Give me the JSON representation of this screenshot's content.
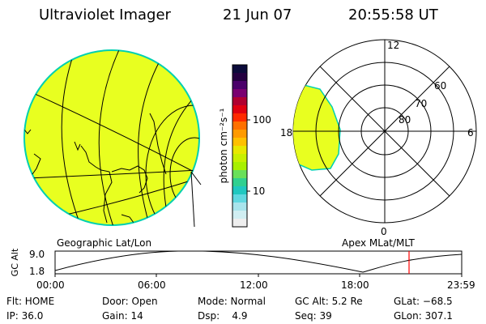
{
  "header": {
    "instrument": "Ultraviolet Imager",
    "date": "21 Jun 07",
    "time": "20:55:58 UT"
  },
  "colorbar": {
    "label": "photon cm⁻²s⁻¹",
    "tick_high": "100",
    "tick_low": "10",
    "colors": [
      "#0b0b3a",
      "#240040",
      "#4a006a",
      "#7a0070",
      "#b00030",
      "#e00010",
      "#ff2a00",
      "#ff7000",
      "#ff9a00",
      "#ffc000",
      "#e8e800",
      "#c8f000",
      "#a8f000",
      "#6ae05a",
      "#30d090",
      "#20c8c0",
      "#60d8e0",
      "#a8e4ec",
      "#d0eef2",
      "#eeeeee"
    ]
  },
  "geo_panel": {
    "label": "Geographic Lat/Lon",
    "fill_color": "#e8ff20",
    "outline_color": "#00d0b0"
  },
  "polar_panel": {
    "label": "Apex MLat/MLT",
    "mlt_labels": {
      "top": "12",
      "left": "18",
      "right": "6",
      "bottom": "0"
    },
    "lat_labels": [
      "60",
      "70",
      "80"
    ],
    "fill_color": "#e8ff20"
  },
  "timeline": {
    "y_axis_title": "GC Alt",
    "y_high": "9.0",
    "y_low": "1.8",
    "x_ticks": [
      "00:00",
      "06:00",
      "12:00",
      "18:00",
      "23:59"
    ],
    "current_marker_color": "#ff0000"
  },
  "footer": {
    "row1": [
      {
        "key": "flt",
        "text": "Flt: HOME"
      },
      {
        "key": "door",
        "text": "Door: Open"
      },
      {
        "key": "mode",
        "text": "Mode: Normal"
      },
      {
        "key": "gcalt",
        "text": "GC Alt: 5.2 Re"
      },
      {
        "key": "glat",
        "text": "GLat: −68.5"
      }
    ],
    "row2": [
      {
        "key": "ip",
        "text": "IP: 36.0"
      },
      {
        "key": "gain",
        "text": "Gain: 14"
      },
      {
        "key": "dsp",
        "text": "Dsp:    4.9"
      },
      {
        "key": "seq",
        "text": "Seq: 39"
      },
      {
        "key": "glon",
        "text": "GLon: 307.1"
      }
    ]
  }
}
